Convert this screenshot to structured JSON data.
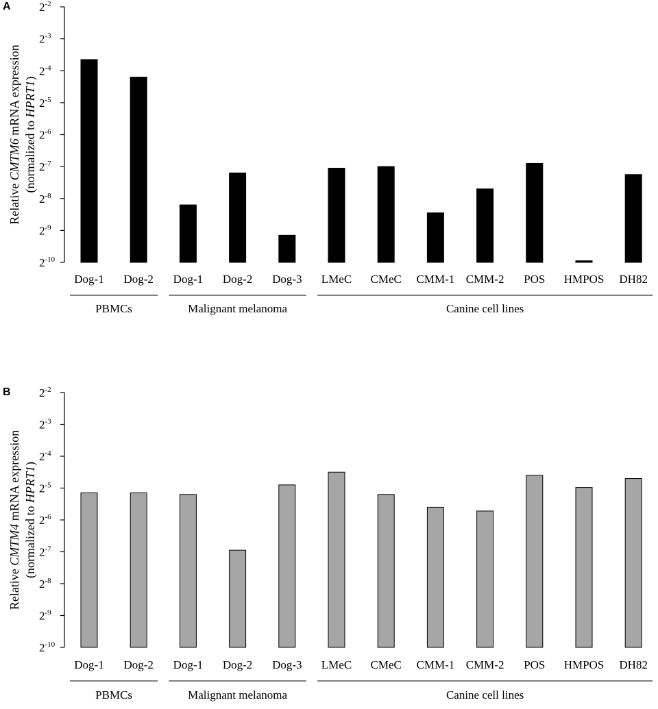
{
  "chart_data": [
    {
      "type": "bar",
      "panel": "A",
      "gene": "CMTM6",
      "bar_color": "#000000",
      "ylabel_parts": [
        "Relative ",
        "CMTM6",
        " mRNA expression"
      ],
      "ylabel2_parts": [
        "(normalized to ",
        "HPRT1",
        ")"
      ],
      "y_scale": "log2",
      "ylim_exponents": [
        -10,
        -2
      ],
      "y_ticks": [
        {
          "base": "2",
          "exp": "-2",
          "value": -2
        },
        {
          "base": "2",
          "exp": "-3",
          "value": -3
        },
        {
          "base": "2",
          "exp": "-4",
          "value": -4
        },
        {
          "base": "2",
          "exp": "-5",
          "value": -5
        },
        {
          "base": "2",
          "exp": "-6",
          "value": -6
        },
        {
          "base": "2",
          "exp": "-7",
          "value": -7
        },
        {
          "base": "2",
          "exp": "-8",
          "value": -8
        },
        {
          "base": "2",
          "exp": "-9",
          "value": -9
        },
        {
          "base": "2",
          "exp": "-10",
          "value": -10
        }
      ],
      "categories": [
        "Dog-1",
        "Dog-2",
        "Dog-1",
        "Dog-2",
        "Dog-3",
        "LMeC",
        "CMeC",
        "CMM-1",
        "CMM-2",
        "POS",
        "HMPOS",
        "DH82"
      ],
      "values_log2": [
        -3.65,
        -4.2,
        -8.2,
        -7.2,
        -9.15,
        -7.05,
        -7.0,
        -8.45,
        -7.7,
        -6.9,
        -9.95,
        -7.25
      ],
      "groups": [
        {
          "label": "PBMCs",
          "start": 0,
          "end": 1
        },
        {
          "label": "Malignant melanoma",
          "start": 2,
          "end": 4
        },
        {
          "label": "Canine cell lines",
          "start": 5,
          "end": 11
        }
      ]
    },
    {
      "type": "bar",
      "panel": "B",
      "gene": "CMTM4",
      "bar_color": "#a6a6a6",
      "ylabel_parts": [
        "Relative ",
        "CMTM4",
        " mRNA expression"
      ],
      "ylabel2_parts": [
        "(normalized to ",
        "HPRT1",
        ")"
      ],
      "y_scale": "log2",
      "ylim_exponents": [
        -10,
        -2
      ],
      "y_ticks": [
        {
          "base": "2",
          "exp": "-2",
          "value": -2
        },
        {
          "base": "2",
          "exp": "-3",
          "value": -3
        },
        {
          "base": "2",
          "exp": "-4",
          "value": -4
        },
        {
          "base": "2",
          "exp": "-5",
          "value": -5
        },
        {
          "base": "2",
          "exp": "-6",
          "value": -6
        },
        {
          "base": "2",
          "exp": "-7",
          "value": -7
        },
        {
          "base": "2",
          "exp": "-8",
          "value": -8
        },
        {
          "base": "2",
          "exp": "-9",
          "value": -9
        },
        {
          "base": "2",
          "exp": "-10",
          "value": -10
        }
      ],
      "categories": [
        "Dog-1",
        "Dog-2",
        "Dog-1",
        "Dog-2",
        "Dog-3",
        "LMeC",
        "CMeC",
        "CMM-1",
        "CMM-2",
        "POS",
        "HMPOS",
        "DH82"
      ],
      "values_log2": [
        -5.15,
        -5.15,
        -5.2,
        -6.95,
        -4.9,
        -4.5,
        -5.2,
        -5.6,
        -5.72,
        -4.6,
        -4.98,
        -4.7
      ],
      "groups": [
        {
          "label": "PBMCs",
          "start": 0,
          "end": 1
        },
        {
          "label": "Malignant melanoma",
          "start": 2,
          "end": 4
        },
        {
          "label": "Canine cell lines",
          "start": 5,
          "end": 11
        }
      ]
    }
  ]
}
